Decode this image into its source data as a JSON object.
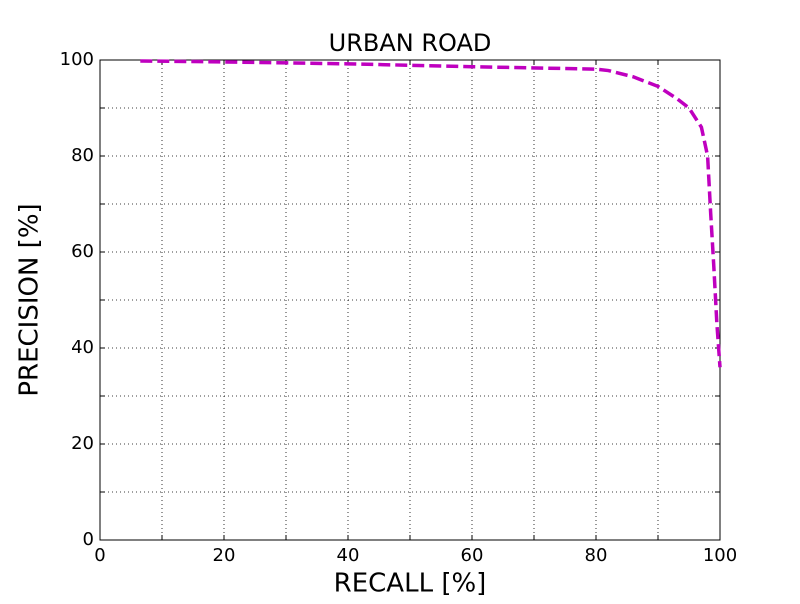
{
  "chart_data": {
    "type": "line",
    "title": "URBAN ROAD",
    "x_label": "RECALL [%]",
    "y_label": "PRECISION [%]",
    "x": [
      6.5,
      20,
      40,
      60,
      80,
      82,
      86,
      90,
      93,
      95,
      97,
      98,
      98.5,
      99,
      99.5,
      100
    ],
    "series": [
      {
        "name": "urban road",
        "color": "#bf00bf",
        "values": [
          99.8,
          99.6,
          99.2,
          98.6,
          98.1,
          97.8,
          96.5,
          94.5,
          92,
          90,
          86,
          80,
          68,
          57,
          45,
          36
        ]
      }
    ],
    "xlim": [
      0,
      100
    ],
    "ylim": [
      0,
      100
    ],
    "xticks": [
      0,
      20,
      40,
      60,
      80,
      100
    ],
    "yticks": [
      0,
      20,
      40,
      60,
      80,
      100
    ],
    "xminor": [
      10,
      30,
      50,
      70,
      90
    ],
    "yminor": [
      10,
      30,
      50,
      70,
      90
    ],
    "grid": true,
    "line_style": "dashed"
  }
}
